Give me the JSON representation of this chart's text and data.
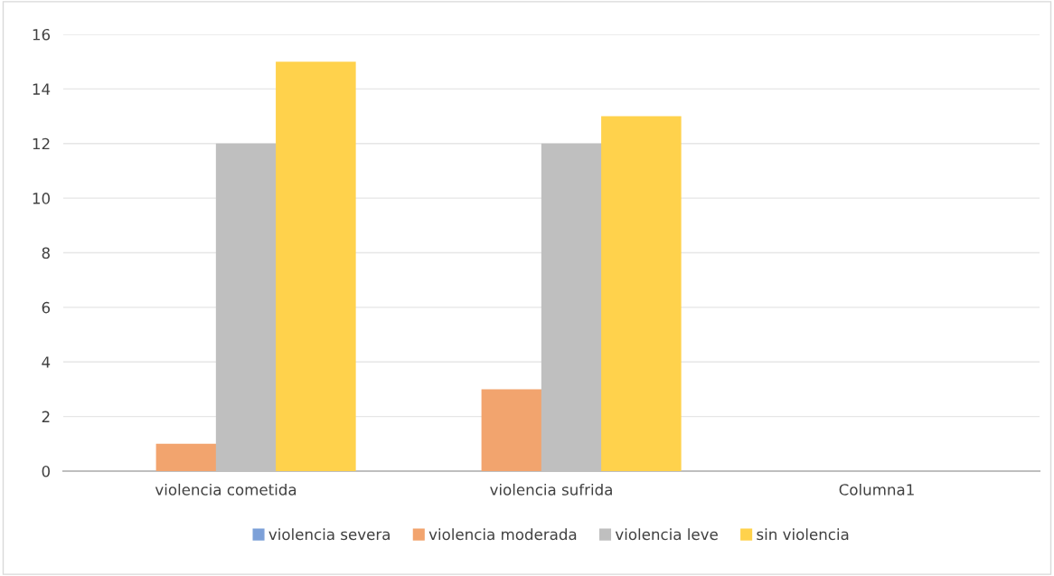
{
  "chart_data": {
    "type": "bar",
    "categories": [
      "violencia cometida",
      "violencia sufrida",
      "Columna1"
    ],
    "series": [
      {
        "name": "violencia severa",
        "color": "#7ca0d8",
        "values": [
          0,
          0,
          0
        ]
      },
      {
        "name": "violencia moderada",
        "color": "#f2a46e",
        "values": [
          1,
          3,
          0
        ]
      },
      {
        "name": "violencia leve",
        "color": "#bfbfbf",
        "values": [
          12,
          12,
          0
        ]
      },
      {
        "name": "sin violencia",
        "color": "#ffd24c",
        "values": [
          15,
          13,
          0
        ]
      }
    ],
    "ylim": [
      0,
      16
    ],
    "yticks": [
      0,
      2,
      4,
      6,
      8,
      10,
      12,
      14,
      16
    ],
    "grid": "y",
    "legend": "bottom"
  }
}
